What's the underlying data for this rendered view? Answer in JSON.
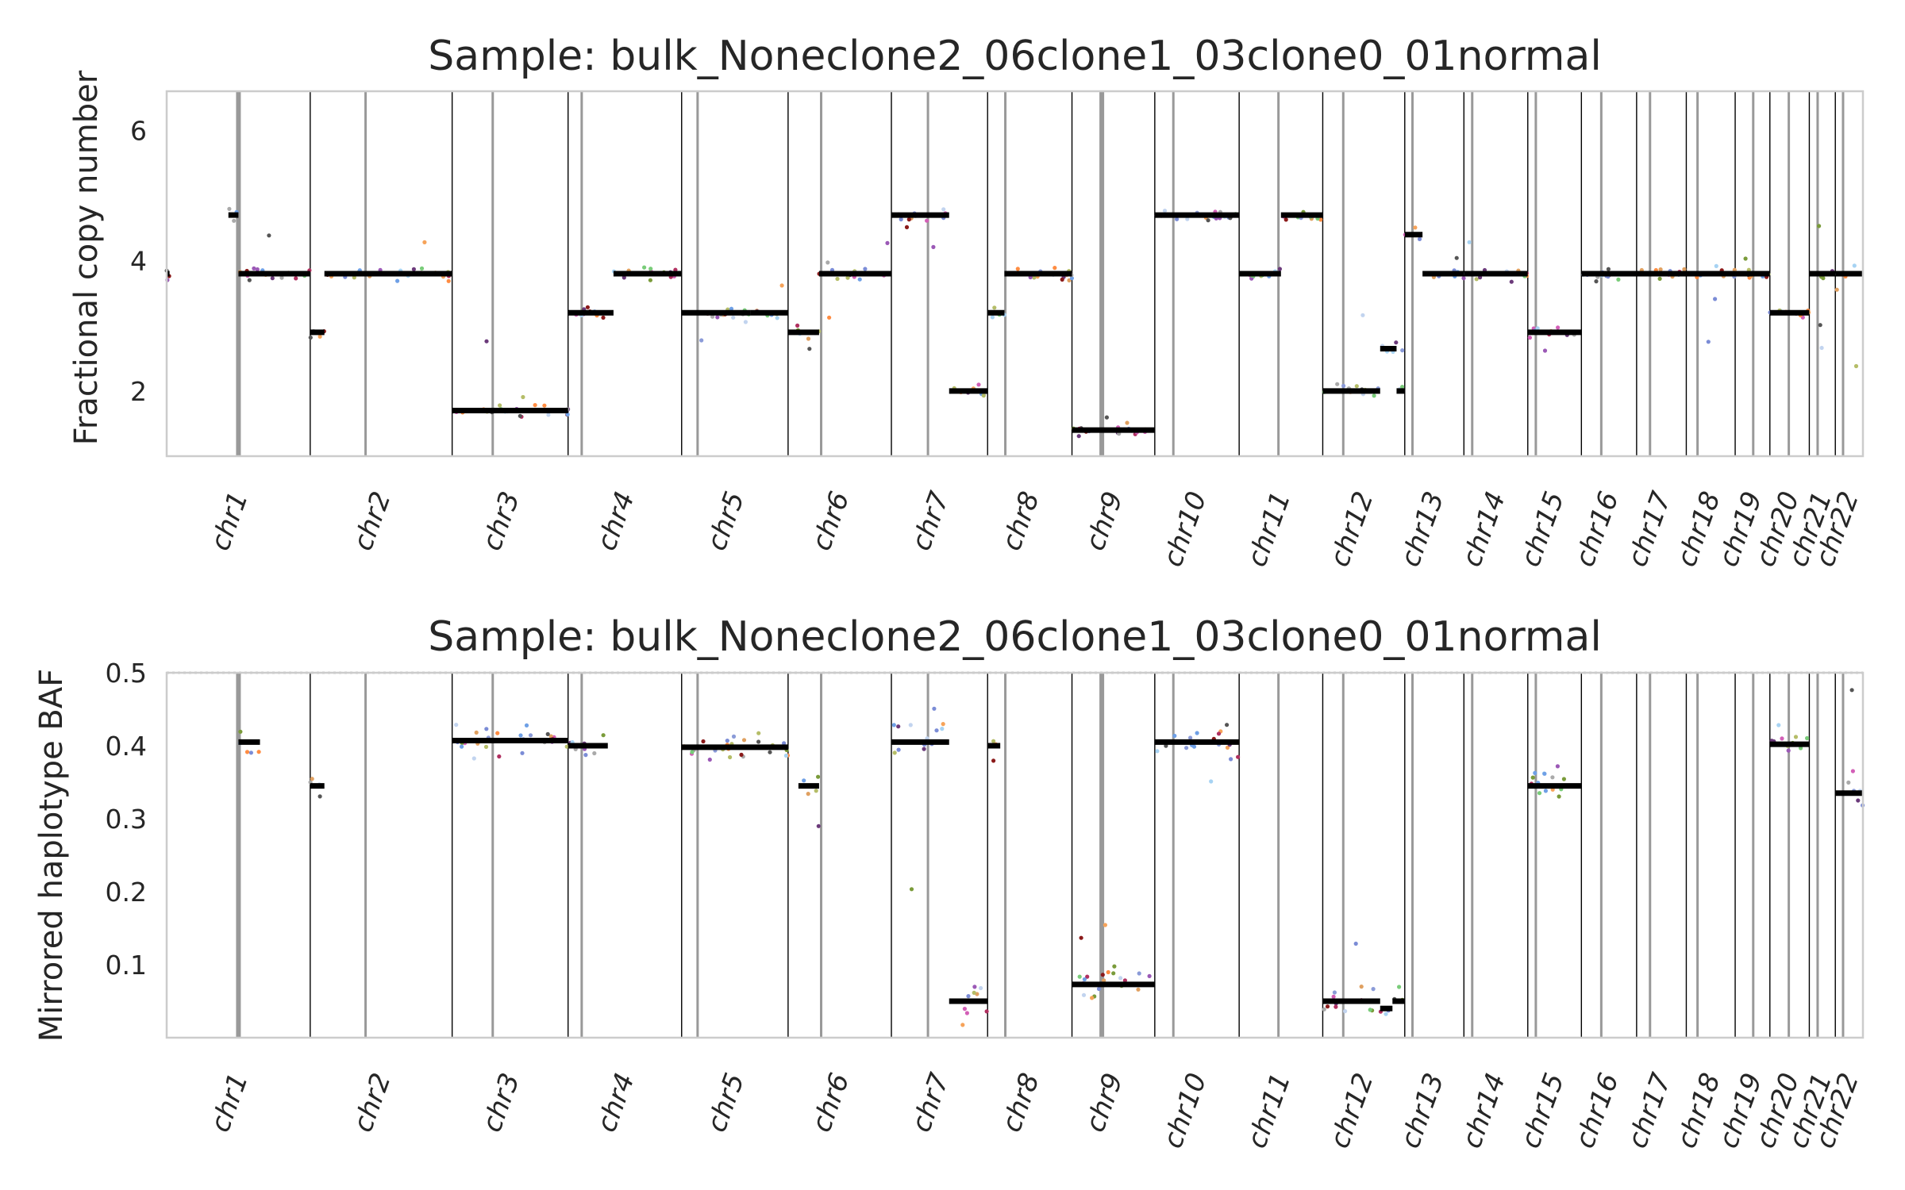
{
  "chart_data": [
    {
      "type": "scatter",
      "title": "Sample: bulk_Noneclone2_06clone1_03clone0_01normal",
      "xlabel": "",
      "ylabel": "Fractional copy number",
      "ylim": [
        1.0,
        6.6
      ],
      "yticks": [
        2,
        4,
        6
      ],
      "grid": false,
      "legend": "none",
      "chromosomes": [
        "chr1",
        "chr2",
        "chr3",
        "chr4",
        "chr5",
        "chr6",
        "chr7",
        "chr8",
        "chr9",
        "chr10",
        "chr11",
        "chr12",
        "chr13",
        "chr14",
        "chr15",
        "chr16",
        "chr17",
        "chr18",
        "chr19",
        "chr20",
        "chr21",
        "chr22"
      ],
      "segments": [
        {
          "chrom": "chr1",
          "x0": 0.0,
          "x1": 0.02,
          "y": 3.8
        },
        {
          "chrom": "chr1",
          "x0": 0.43,
          "x1": 0.5,
          "y": 4.7
        },
        {
          "chrom": "chr1",
          "x0": 0.5,
          "x1": 1.0,
          "y": 3.8
        },
        {
          "chrom": "chr2",
          "x0": 0.0,
          "x1": 0.1,
          "y": 2.9
        },
        {
          "chrom": "chr2",
          "x0": 0.1,
          "x1": 1.0,
          "y": 3.8
        },
        {
          "chrom": "chr3",
          "x0": 0.0,
          "x1": 1.0,
          "y": 1.7
        },
        {
          "chrom": "chr4",
          "x0": 0.0,
          "x1": 0.4,
          "y": 3.2
        },
        {
          "chrom": "chr4",
          "x0": 0.4,
          "x1": 1.0,
          "y": 3.8
        },
        {
          "chrom": "chr5",
          "x0": 0.0,
          "x1": 0.65,
          "y": 3.2
        },
        {
          "chrom": "chr5",
          "x0": 0.65,
          "x1": 1.0,
          "y": 3.2
        },
        {
          "chrom": "chr6",
          "x0": 0.0,
          "x1": 0.3,
          "y": 2.9
        },
        {
          "chrom": "chr6",
          "x0": 0.3,
          "x1": 1.0,
          "y": 3.8
        },
        {
          "chrom": "chr7",
          "x0": 0.0,
          "x1": 0.6,
          "y": 4.7
        },
        {
          "chrom": "chr7",
          "x0": 0.6,
          "x1": 1.0,
          "y": 2.0
        },
        {
          "chrom": "chr8",
          "x0": 0.0,
          "x1": 0.2,
          "y": 3.2
        },
        {
          "chrom": "chr8",
          "x0": 0.2,
          "x1": 1.0,
          "y": 3.8
        },
        {
          "chrom": "chr9",
          "x0": 0.0,
          "x1": 1.0,
          "y": 1.4
        },
        {
          "chrom": "chr10",
          "x0": 0.0,
          "x1": 1.0,
          "y": 4.7
        },
        {
          "chrom": "chr11",
          "x0": 0.0,
          "x1": 0.5,
          "y": 3.8
        },
        {
          "chrom": "chr11",
          "x0": 0.5,
          "x1": 1.0,
          "y": 4.7
        },
        {
          "chrom": "chr12",
          "x0": 0.0,
          "x1": 0.7,
          "y": 2.0
        },
        {
          "chrom": "chr12",
          "x0": 0.7,
          "x1": 0.9,
          "y": 2.65
        },
        {
          "chrom": "chr12",
          "x0": 0.9,
          "x1": 1.0,
          "y": 2.0
        },
        {
          "chrom": "chr13",
          "x0": 0.0,
          "x1": 0.3,
          "y": 4.4
        },
        {
          "chrom": "chr13",
          "x0": 0.3,
          "x1": 1.0,
          "y": 3.8
        },
        {
          "chrom": "chr14",
          "x0": 0.0,
          "x1": 1.0,
          "y": 3.8
        },
        {
          "chrom": "chr15",
          "x0": 0.0,
          "x1": 1.0,
          "y": 2.9
        },
        {
          "chrom": "chr16",
          "x0": 0.0,
          "x1": 1.0,
          "y": 3.8
        },
        {
          "chrom": "chr17",
          "x0": 0.0,
          "x1": 1.0,
          "y": 3.8
        },
        {
          "chrom": "chr18",
          "x0": 0.0,
          "x1": 1.0,
          "y": 3.8
        },
        {
          "chrom": "chr19",
          "x0": 0.0,
          "x1": 1.0,
          "y": 3.8
        },
        {
          "chrom": "chr20",
          "x0": 0.0,
          "x1": 1.0,
          "y": 3.2
        },
        {
          "chrom": "chr21",
          "x0": 0.0,
          "x1": 1.0,
          "y": 3.8
        },
        {
          "chrom": "chr22",
          "x0": 0.0,
          "x1": 1.0,
          "y": 3.8
        }
      ]
    },
    {
      "type": "scatter",
      "title": "Sample: bulk_Noneclone2_06clone1_03clone0_01normal",
      "xlabel": "",
      "ylabel": "Mirrored haplotype BAF",
      "ylim": [
        0.0,
        0.5
      ],
      "yticks": [
        0.1,
        0.2,
        0.3,
        0.4,
        0.5
      ],
      "grid": false,
      "legend": "none",
      "reference_line": 0.5,
      "chromosomes": [
        "chr1",
        "chr2",
        "chr3",
        "chr4",
        "chr5",
        "chr6",
        "chr7",
        "chr8",
        "chr9",
        "chr10",
        "chr11",
        "chr12",
        "chr13",
        "chr14",
        "chr15",
        "chr16",
        "chr17",
        "chr18",
        "chr19",
        "chr20",
        "chr21",
        "chr22"
      ],
      "segments": [
        {
          "chrom": "chr1",
          "x0": 0.5,
          "x1": 0.65,
          "y": 0.405
        },
        {
          "chrom": "chr2",
          "x0": 0.0,
          "x1": 0.1,
          "y": 0.345
        },
        {
          "chrom": "chr3",
          "x0": 0.0,
          "x1": 1.0,
          "y": 0.407
        },
        {
          "chrom": "chr4",
          "x0": 0.0,
          "x1": 0.35,
          "y": 0.4
        },
        {
          "chrom": "chr5",
          "x0": 0.0,
          "x1": 1.0,
          "y": 0.398
        },
        {
          "chrom": "chr6",
          "x0": 0.1,
          "x1": 0.3,
          "y": 0.345
        },
        {
          "chrom": "chr7",
          "x0": 0.0,
          "x1": 0.6,
          "y": 0.405
        },
        {
          "chrom": "chr7",
          "x0": 0.6,
          "x1": 1.0,
          "y": 0.05
        },
        {
          "chrom": "chr8",
          "x0": 0.0,
          "x1": 0.15,
          "y": 0.4
        },
        {
          "chrom": "chr9",
          "x0": 0.0,
          "x1": 1.0,
          "y": 0.073
        },
        {
          "chrom": "chr10",
          "x0": 0.0,
          "x1": 1.0,
          "y": 0.405
        },
        {
          "chrom": "chr12",
          "x0": 0.0,
          "x1": 0.7,
          "y": 0.05
        },
        {
          "chrom": "chr12",
          "x0": 0.7,
          "x1": 0.85,
          "y": 0.04
        },
        {
          "chrom": "chr12",
          "x0": 0.85,
          "x1": 1.0,
          "y": 0.05
        },
        {
          "chrom": "chr15",
          "x0": 0.0,
          "x1": 1.0,
          "y": 0.345
        },
        {
          "chrom": "chr20",
          "x0": 0.0,
          "x1": 1.0,
          "y": 0.402
        },
        {
          "chrom": "chr22",
          "x0": 0.0,
          "x1": 1.0,
          "y": 0.335
        }
      ]
    }
  ]
}
